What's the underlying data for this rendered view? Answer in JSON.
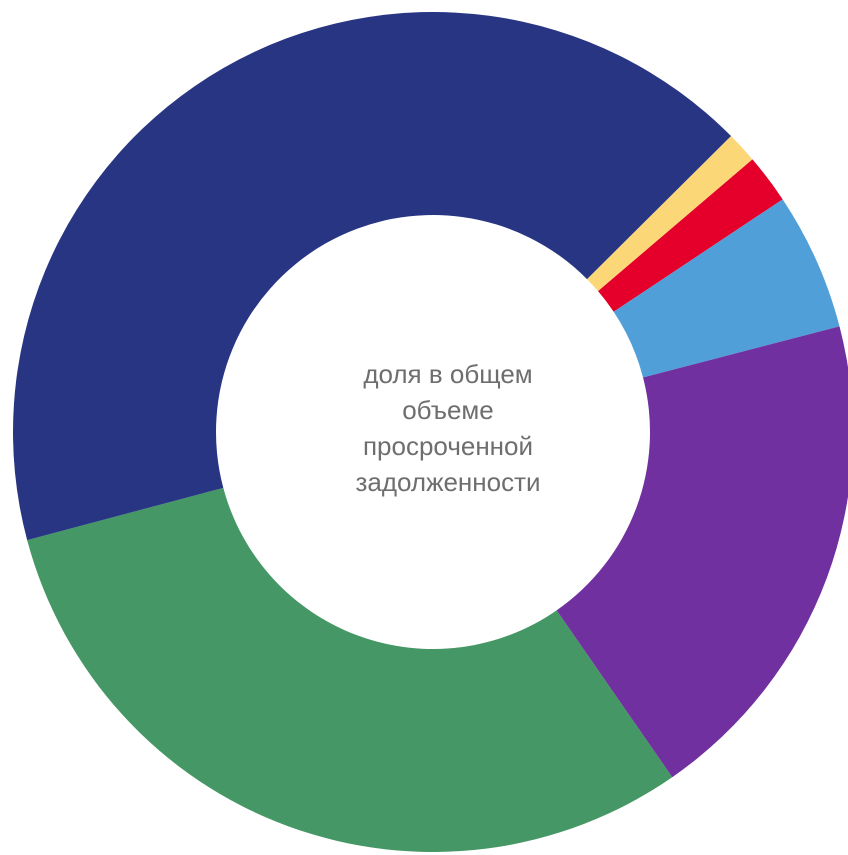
{
  "chart_data": {
    "type": "pie",
    "donut": true,
    "center_label": [
      "доля в общем",
      "объеме",
      "просроченной",
      "задолженности"
    ],
    "start_angle_deg": 45.2,
    "direction": "clockwise",
    "slices": [
      {
        "value": 1.2,
        "color": "#fcd777"
      },
      {
        "value": 1.9,
        "color": "#e4002b"
      },
      {
        "value": 5.3,
        "color": "#519fd8"
      },
      {
        "value": 19.4,
        "color": "#7030a0"
      },
      {
        "value": 30.5,
        "color": "#459765"
      },
      {
        "value": 41.7,
        "color": "#283583"
      }
    ]
  }
}
